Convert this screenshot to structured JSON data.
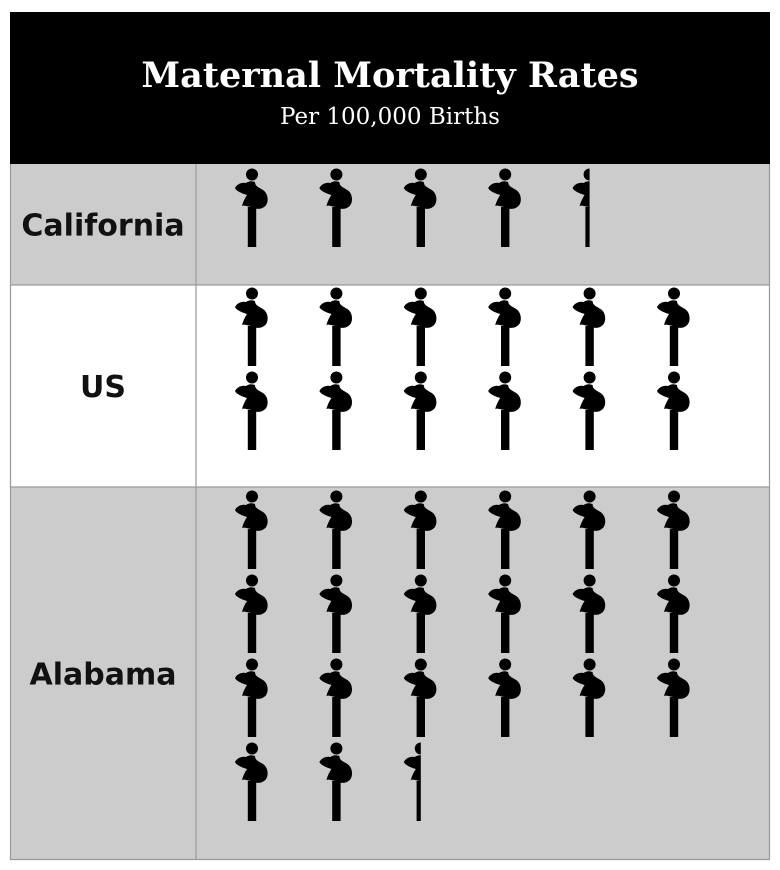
{
  "colors": {
    "header_bg": "#000000",
    "header_text": "#ffffff",
    "row_shaded": "#cccccc",
    "row_plain": "#ffffff",
    "grid_line": "#9a9a9a",
    "icon": "#000000",
    "label_text": "#111111"
  },
  "icon_name": "pregnant-woman-icon",
  "chart_data": {
    "type": "pictograph",
    "title": "Maternal Mortality Rates",
    "subtitle": "Per 100,000 Births",
    "icons_per_row": 6,
    "categories": [
      "California",
      "US",
      "Alabama"
    ],
    "values": [
      4.5,
      12,
      20.5
    ]
  }
}
